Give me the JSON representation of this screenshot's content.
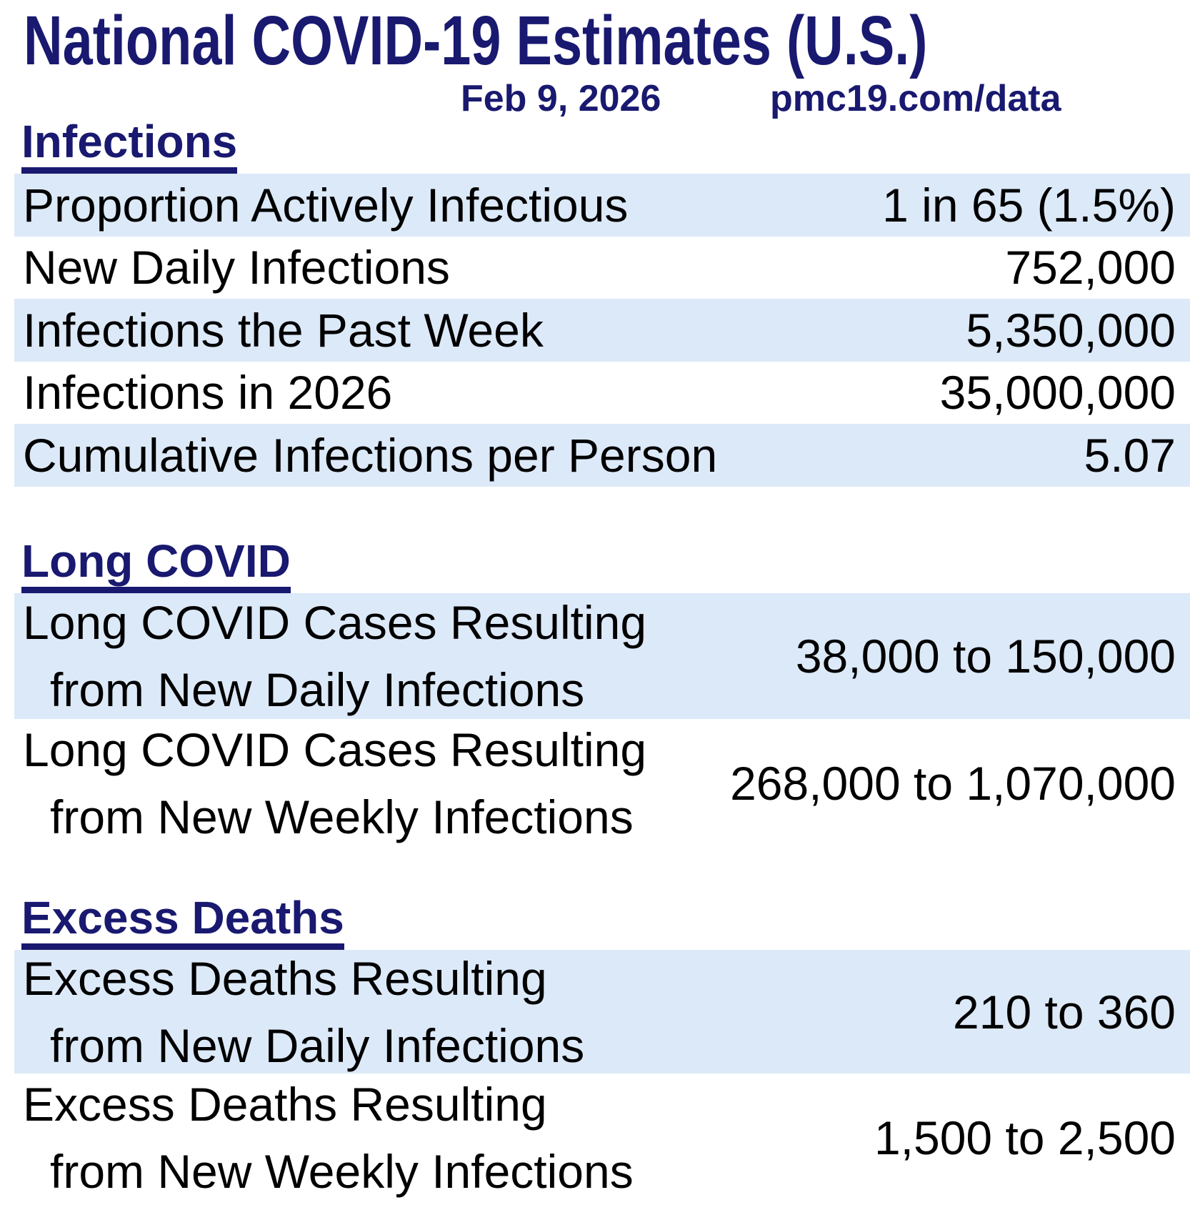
{
  "page": {
    "title": "National COVID-19 Estimates (U.S.)",
    "date": "Feb 9, 2026",
    "source": "pmc19.com/data"
  },
  "colors": {
    "heading_navy": "#191970",
    "row_shaded_blue": "#dce9f8",
    "row_text": "#000000",
    "background": "#ffffff"
  },
  "sections": [
    {
      "heading": "Infections",
      "rows": [
        {
          "label": "Proportion Actively Infectious",
          "value": "1 in 65 (1.5%)",
          "shaded": true
        },
        {
          "label": "New Daily Infections",
          "value": "752,000",
          "shaded": false
        },
        {
          "label": "Infections the Past Week",
          "value": "5,350,000",
          "shaded": true
        },
        {
          "label": "Infections in 2026",
          "value": "35,000,000",
          "shaded": false
        },
        {
          "label": "Cumulative Infections per Person",
          "value": "5.07",
          "shaded": true
        }
      ]
    },
    {
      "heading": "Long COVID",
      "rows": [
        {
          "label": "Long COVID Cases Resulting",
          "label2": "from New Daily Infections",
          "value": "38,000 to 150,000",
          "shaded": true
        },
        {
          "label": "Long COVID Cases Resulting",
          "label2": "from New Weekly Infections",
          "value": "268,000 to 1,070,000",
          "shaded": false
        }
      ]
    },
    {
      "heading": "Excess Deaths",
      "rows": [
        {
          "label": "Excess Deaths Resulting",
          "label2": "from New Daily Infections",
          "value": "210 to 360",
          "shaded": true
        },
        {
          "label": "Excess Deaths Resulting",
          "label2": "from New Weekly Infections",
          "value": "1,500 to 2,500",
          "shaded": false
        }
      ]
    }
  ]
}
